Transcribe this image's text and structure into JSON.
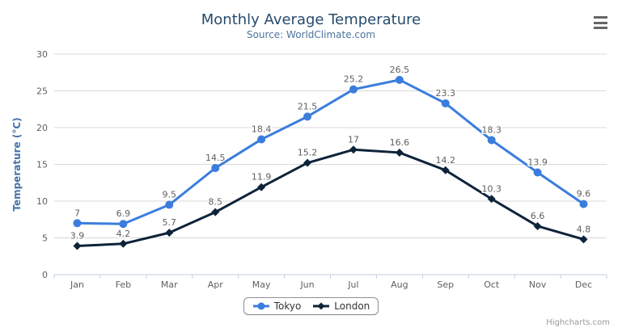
{
  "header": {
    "title": "Monthly Average Temperature",
    "subtitle": "Source: WorldClimate.com"
  },
  "chart_data": {
    "type": "line",
    "categories": [
      "Jan",
      "Feb",
      "Mar",
      "Apr",
      "May",
      "Jun",
      "Jul",
      "Aug",
      "Sep",
      "Oct",
      "Nov",
      "Dec"
    ],
    "series": [
      {
        "name": "Tokyo",
        "color": "#3b7ddd",
        "marker": "circle",
        "values": [
          7,
          6.9,
          9.5,
          14.5,
          18.4,
          21.5,
          25.2,
          26.5,
          23.3,
          18.3,
          13.9,
          9.6
        ]
      },
      {
        "name": "London",
        "color": "#0d233a",
        "marker": "diamond",
        "values": [
          3.9,
          4.2,
          5.7,
          8.5,
          11.9,
          15.2,
          17,
          16.6,
          14.2,
          10.3,
          6.6,
          4.8
        ]
      }
    ],
    "xlabel": "",
    "ylabel": "Temperature (°C)",
    "ylim": [
      0,
      30
    ],
    "ytick_step": 5,
    "grid": true,
    "legend_position": "bottom"
  },
  "credits": {
    "text": "Highcharts.com"
  },
  "export_menu": {
    "icon": "hamburger-icon"
  },
  "colors": {
    "title": "#274b6d",
    "subtitle": "#4d759e",
    "axis_label": "#606060",
    "axis_title": "#4572a7",
    "data_label": "#606060",
    "grid_line": "#d8d8d8",
    "axis_line": "#c0d0e0",
    "legend_border": "#909090",
    "legend_text": "#333333",
    "credits_text": "#999999",
    "menu_icon": "#666666"
  }
}
